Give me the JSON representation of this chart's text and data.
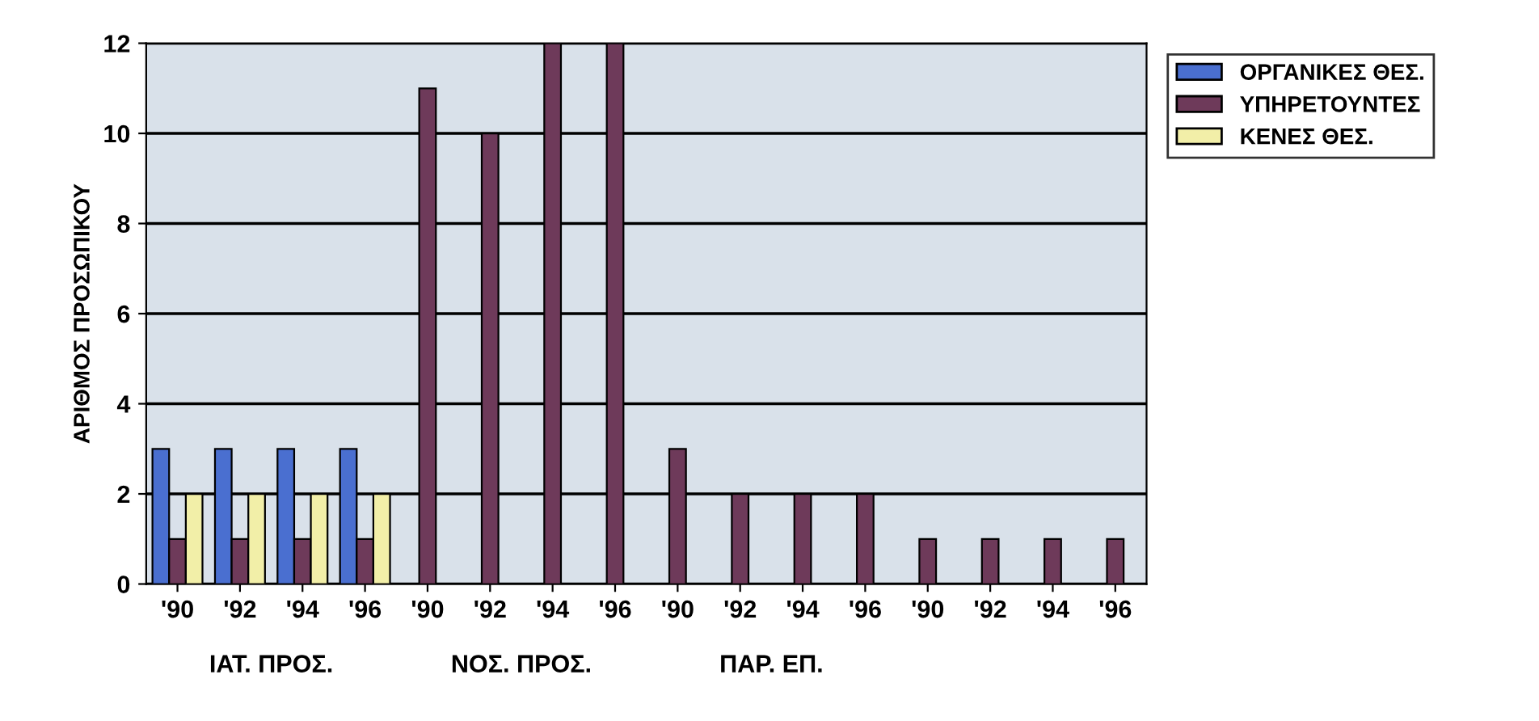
{
  "chart_data": {
    "type": "bar",
    "ylabel": "ΑΡΙΘΜΟΣ ΠΡΟΣΩΠΙΚΟΥ",
    "categories": [
      "'90",
      "'92",
      "'94",
      "'96",
      "'90",
      "'92",
      "'94",
      "'96",
      "'90",
      "'92",
      "'94",
      "'96",
      "'90",
      "'92",
      "'94",
      "'96"
    ],
    "series": [
      {
        "name": "ΟΡΓΑΝΙΚΕΣ ΘΕΣ.",
        "color": "#4a6fd0",
        "values": [
          3,
          3,
          3,
          3,
          null,
          null,
          null,
          null,
          null,
          null,
          null,
          null,
          null,
          null,
          null,
          null
        ]
      },
      {
        "name": "ΥΠΗΡΕΤΟΥΝΤΕΣ",
        "color": "#6e3a5a",
        "values": [
          1,
          1,
          1,
          1,
          11,
          10,
          12,
          12,
          3,
          2,
          2,
          2,
          1,
          1,
          1,
          1
        ]
      },
      {
        "name": "ΚΕΝΕΣ ΘΕΣ.",
        "color": "#f2efa8",
        "values": [
          2,
          2,
          2,
          2,
          null,
          null,
          null,
          null,
          null,
          null,
          null,
          null,
          null,
          null,
          null,
          null
        ]
      }
    ],
    "annotations": [
      "ΙΑΤ. ΠΡΟΣ.",
      "ΝΟΣ. ΠΡΟΣ.",
      "ΠΑΡ. ΕΠ."
    ],
    "ylim": [
      0,
      12
    ],
    "yticks": [
      0,
      2,
      4,
      6,
      8,
      10,
      12
    ],
    "grid": "y",
    "legend": "top right"
  }
}
